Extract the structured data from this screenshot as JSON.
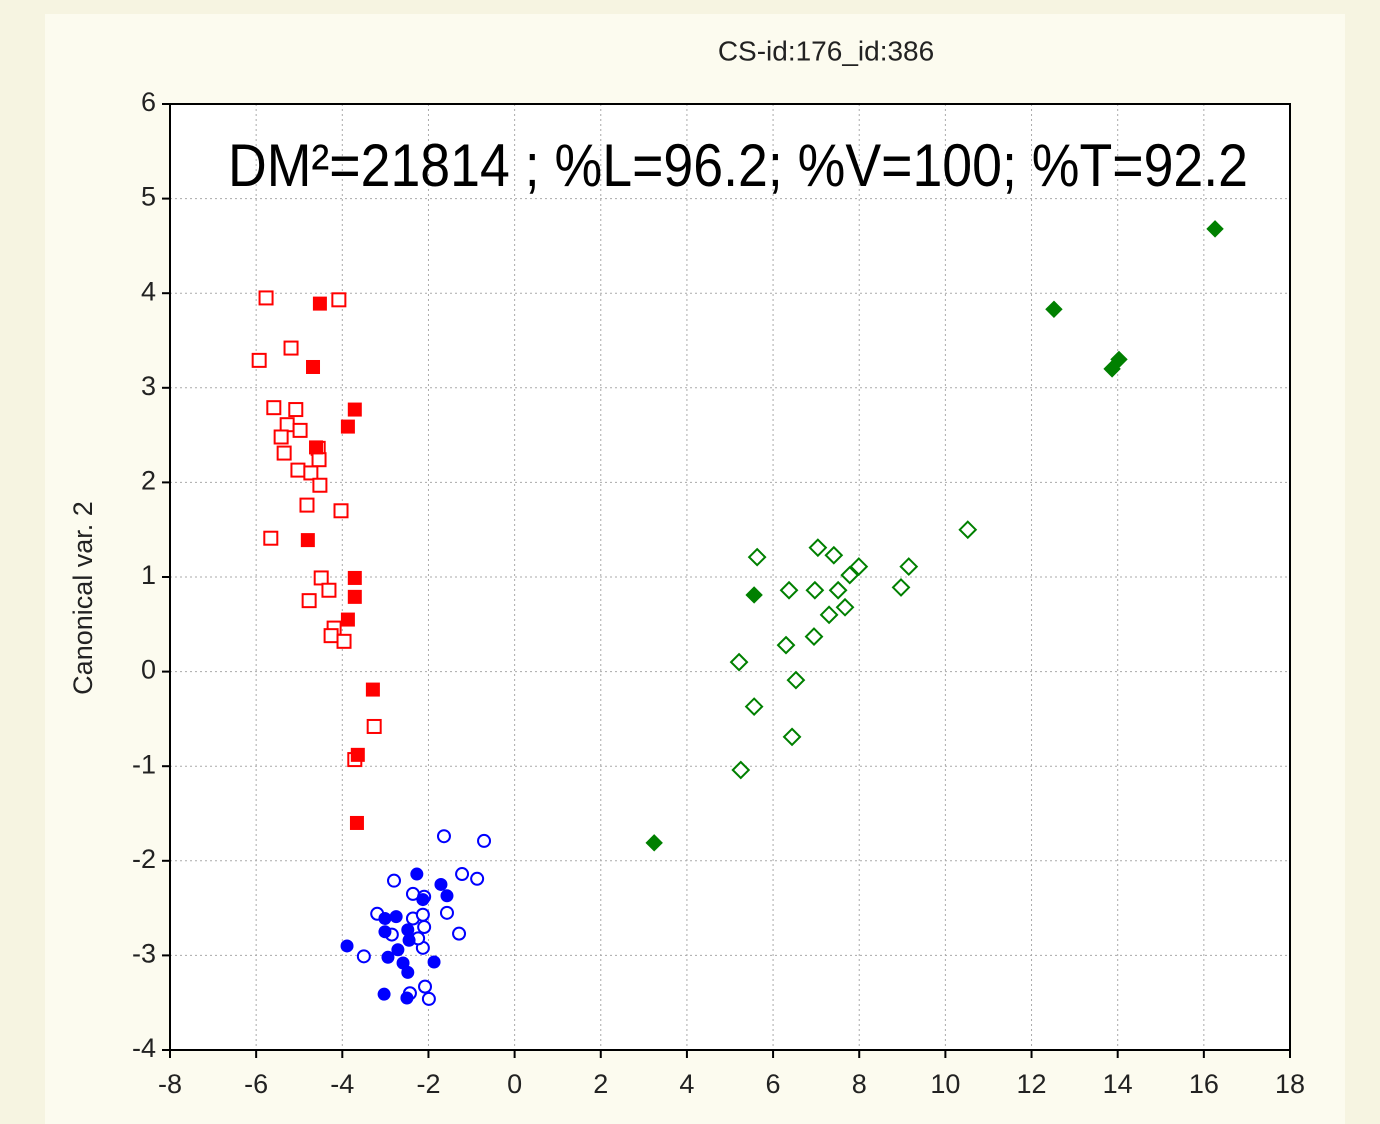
{
  "chart_data": {
    "type": "scatter",
    "title": "CS-id:176_id:386",
    "annotation": "DM²=21814 ; %L=96.2; %V=100; %T=92.2",
    "ylabel": "Canonical var. 2",
    "xlim": [
      -8,
      18
    ],
    "xticks": [
      -8,
      -6,
      -4,
      -2,
      0,
      2,
      4,
      6,
      8,
      10,
      12,
      14,
      16,
      18
    ],
    "ylim": [
      -4,
      6
    ],
    "yticks": [
      -4,
      -3,
      -2,
      -1,
      0,
      1,
      2,
      3,
      4,
      5,
      6
    ],
    "grid": true,
    "series": [
      {
        "color": "#ff0000",
        "marker": "square",
        "filled": false,
        "x": [
          -5.77,
          -4.08,
          -5.93,
          -5.19,
          -5.59,
          -5.08,
          -5.28,
          -5.42,
          -4.98,
          -5.35,
          -4.56,
          -4.54,
          -5.03,
          -4.73,
          -4.52,
          -4.82,
          -4.03,
          -5.66,
          -4.49,
          -4.31,
          -4.77,
          -4.19,
          -4.26,
          -3.96,
          -3.26,
          -3.71
        ],
        "values": [
          3.95,
          3.93,
          3.29,
          3.42,
          2.79,
          2.77,
          2.61,
          2.48,
          2.55,
          2.31,
          2.36,
          2.24,
          2.13,
          2.1,
          1.97,
          1.76,
          1.7,
          1.41,
          0.99,
          0.86,
          0.75,
          0.46,
          0.38,
          0.32,
          -0.58,
          -0.93
        ]
      },
      {
        "color": "#ff0000",
        "marker": "square",
        "filled": true,
        "x": [
          -4.52,
          -4.68,
          -3.71,
          -3.87,
          -4.61,
          -4.8,
          -3.71,
          -3.71,
          -3.87,
          -3.29,
          -3.64,
          -3.66
        ],
        "values": [
          3.89,
          3.22,
          2.77,
          2.59,
          2.37,
          1.39,
          0.99,
          0.79,
          0.55,
          -0.19,
          -0.88,
          -1.6
        ]
      },
      {
        "color": "#0000ff",
        "marker": "circle",
        "filled": false,
        "x": [
          -1.64,
          -0.71,
          -1.22,
          -0.87,
          -2.8,
          -2.36,
          -2.1,
          -1.57,
          -3.19,
          -2.36,
          -2.13,
          -2.1,
          -1.29,
          -2.85,
          -2.13,
          -3.5,
          -2.43,
          -2.08,
          -1.99,
          -2.24
        ],
        "values": [
          -1.74,
          -1.79,
          -2.14,
          -2.19,
          -2.21,
          -2.35,
          -2.38,
          -2.55,
          -2.56,
          -2.61,
          -2.57,
          -2.7,
          -2.77,
          -2.78,
          -2.92,
          -3.01,
          -3.4,
          -3.33,
          -3.46,
          -2.82
        ]
      },
      {
        "color": "#0000ff",
        "marker": "circle",
        "filled": true,
        "x": [
          -2.27,
          -1.71,
          -1.57,
          -2.13,
          -3.01,
          -2.75,
          -2.48,
          -3.01,
          -3.89,
          -2.71,
          -2.94,
          -2.59,
          -1.87,
          -2.48,
          -3.03,
          -2.5,
          -2.45
        ],
        "values": [
          -2.14,
          -2.25,
          -2.37,
          -2.41,
          -2.61,
          -2.59,
          -2.73,
          -2.75,
          -2.9,
          -2.94,
          -3.02,
          -3.08,
          -3.07,
          -3.18,
          -3.41,
          -3.45,
          -2.84
        ]
      },
      {
        "color": "#008000",
        "marker": "diamond",
        "filled": false,
        "x": [
          10.52,
          5.63,
          7.04,
          7.41,
          7.99,
          7.78,
          9.15,
          6.37,
          6.97,
          7.51,
          8.97,
          7.67,
          7.3,
          6.95,
          6.3,
          5.21,
          6.53,
          5.56,
          6.44,
          5.25
        ],
        "values": [
          1.5,
          1.21,
          1.31,
          1.23,
          1.11,
          1.02,
          1.11,
          0.86,
          0.86,
          0.86,
          0.89,
          0.68,
          0.6,
          0.37,
          0.28,
          0.1,
          -0.09,
          -0.37,
          -0.69,
          -1.04
        ]
      },
      {
        "color": "#008000",
        "marker": "diamond",
        "filled": true,
        "x": [
          16.26,
          12.52,
          14.03,
          13.87,
          5.56,
          3.24
        ],
        "values": [
          4.68,
          3.83,
          3.3,
          3.2,
          0.81,
          -1.81
        ]
      }
    ]
  }
}
